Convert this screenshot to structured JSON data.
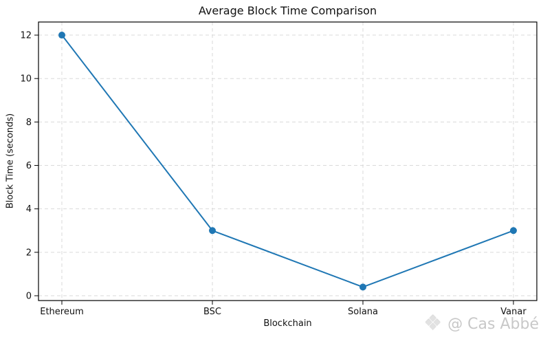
{
  "chart_data": {
    "type": "line",
    "title": "Average Block Time Comparison",
    "xlabel": "Blockchain",
    "ylabel": "Block Time (seconds)",
    "categories": [
      "Ethereum",
      "BSC",
      "Solana",
      "Vanar"
    ],
    "values": [
      12,
      3,
      0.4,
      3
    ],
    "yticks": [
      0,
      2,
      4,
      6,
      8,
      10,
      12
    ],
    "ylim": [
      -0.2,
      12.6
    ],
    "grid": "dashed both axes",
    "legend_position": "none",
    "marker": "circle"
  },
  "watermark": {
    "icon": "diamond-logo",
    "text": "@ Cas Abbé"
  },
  "colors": {
    "line": "#1f77b4",
    "grid": "#d9d9d9",
    "axis": "#000000",
    "background": "#ffffff",
    "watermark": "#c8c8c8"
  }
}
